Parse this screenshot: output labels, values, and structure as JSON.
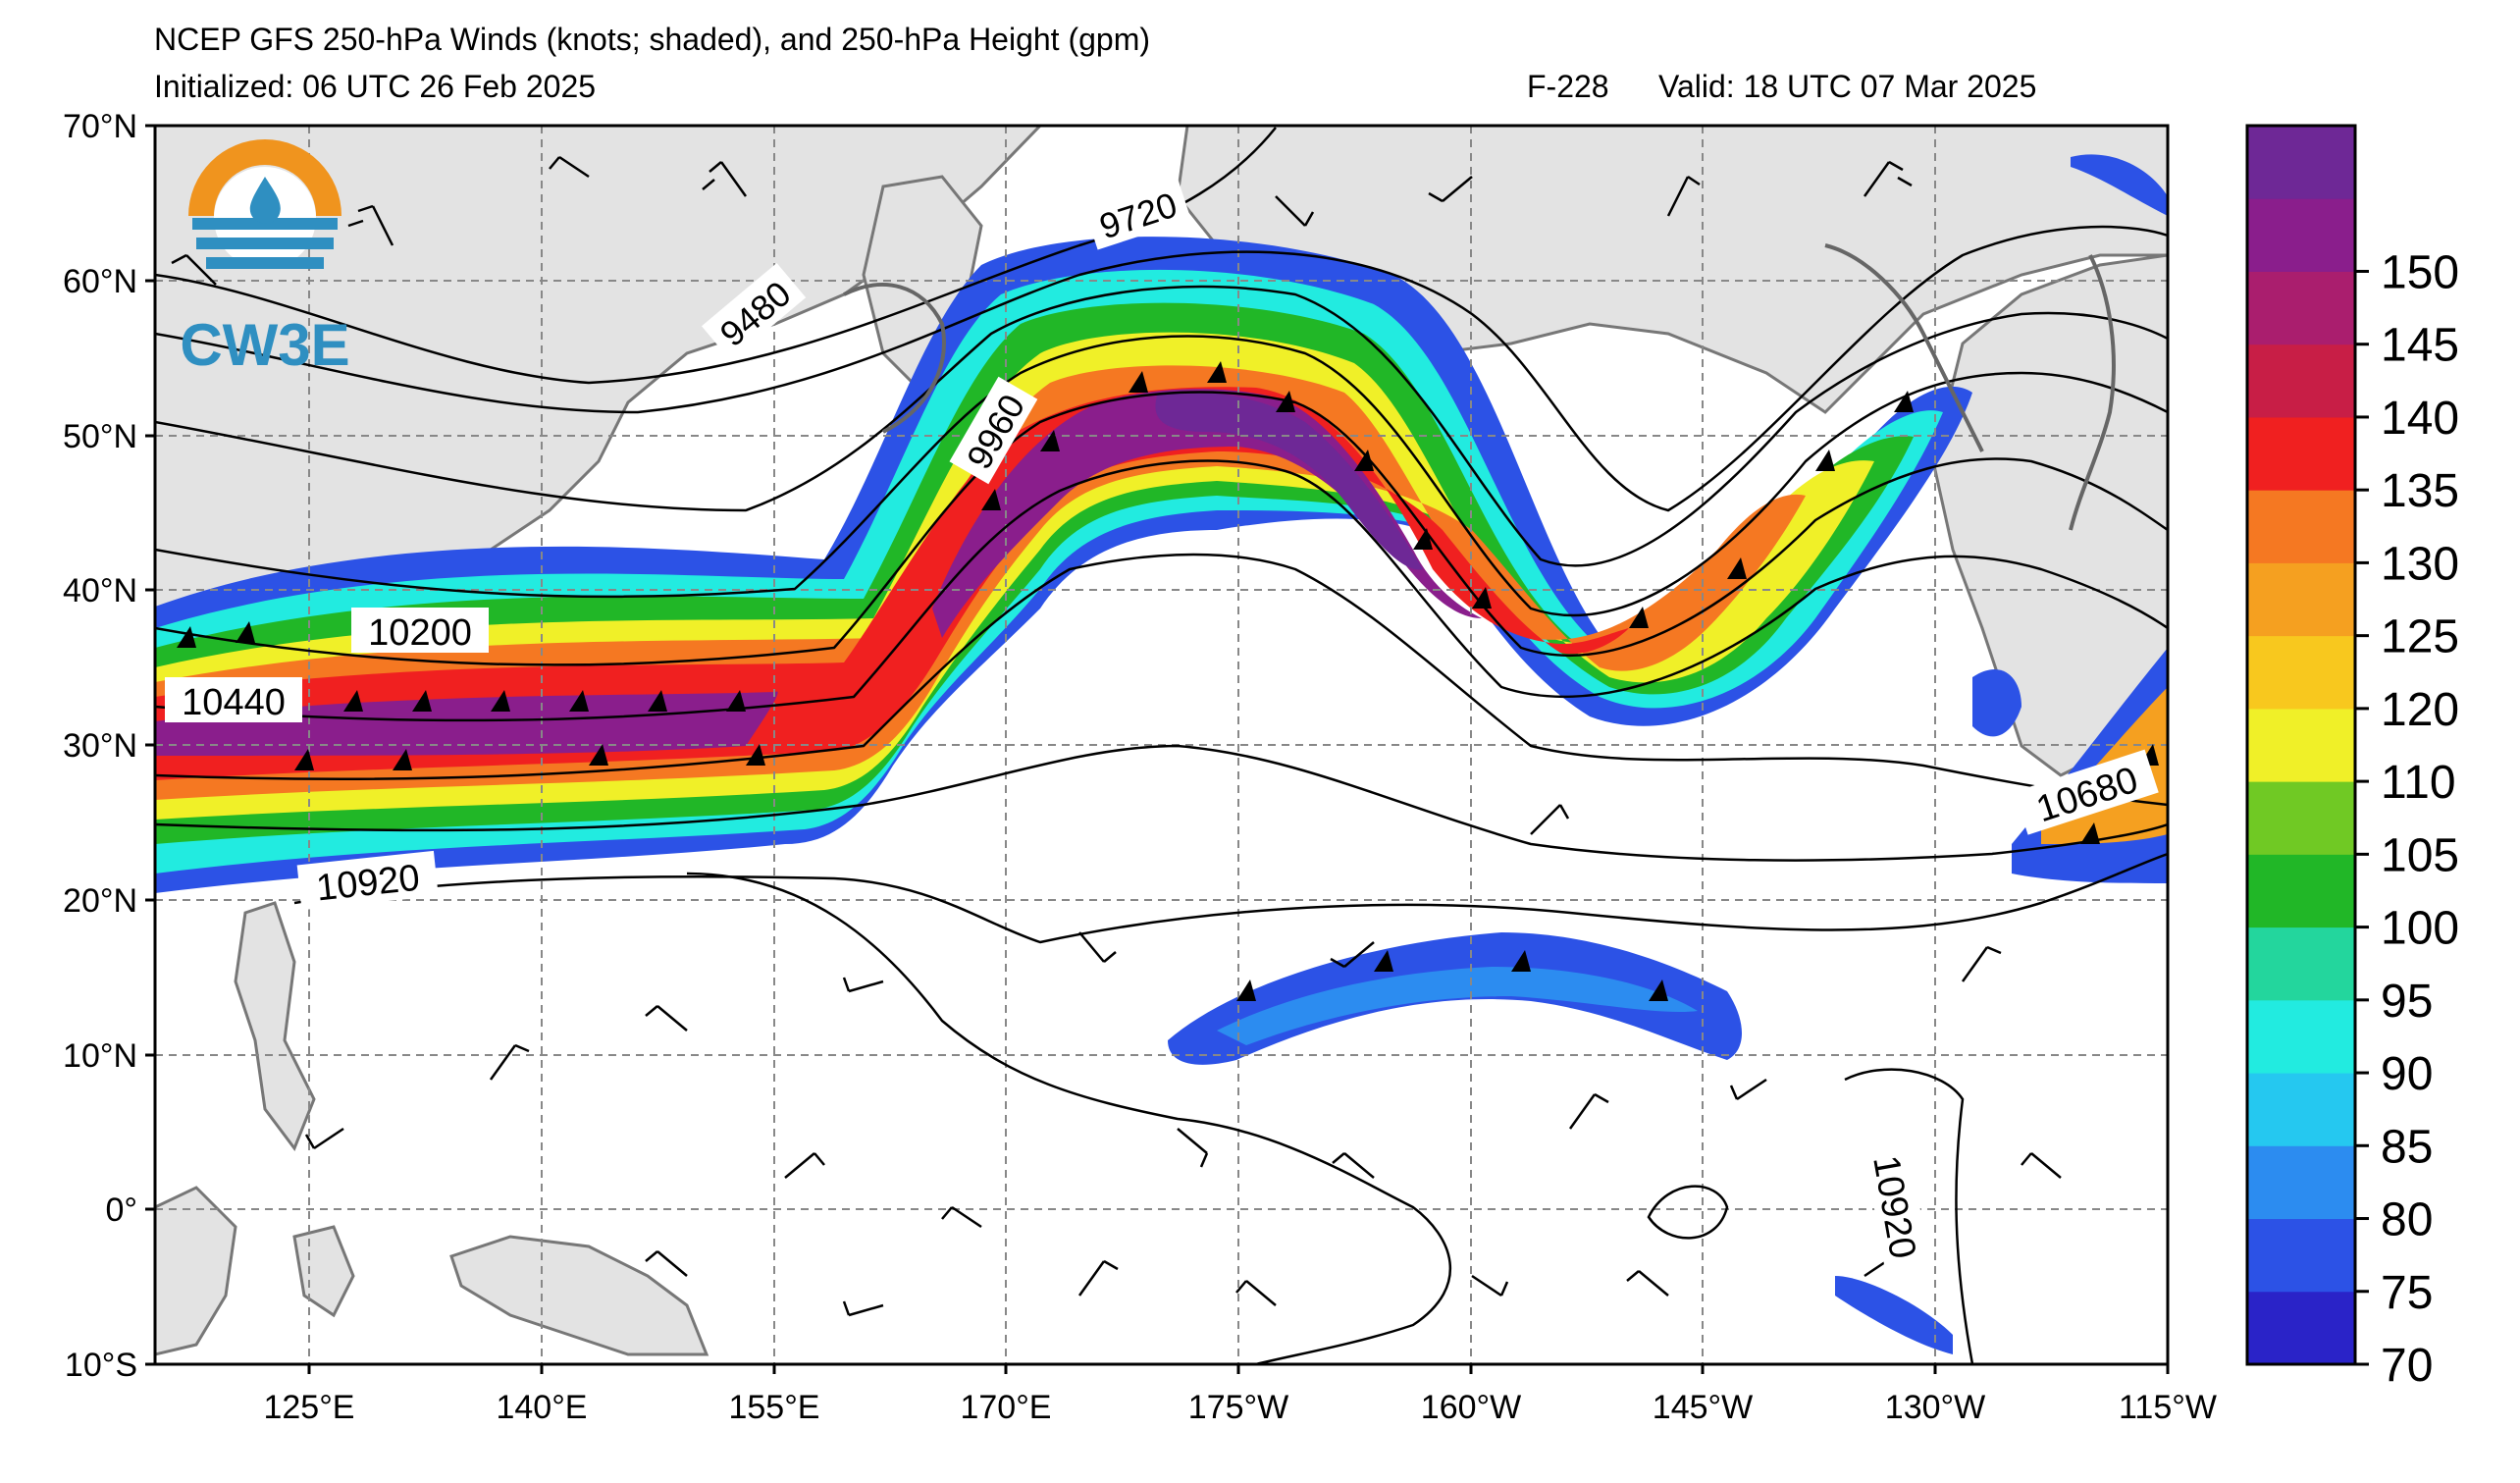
{
  "header": {
    "title": "NCEP GFS 250-hPa Winds (knots; shaded), and 250-hPa Height (gpm)",
    "initialized": "Initialized: 06 UTC 26 Feb 2025",
    "forecast": "F-228",
    "valid": "Valid: 18 UTC 07 Mar 2025"
  },
  "logo": {
    "text": "CW3E",
    "accent_color": "#f0941e",
    "main_color": "#2f8fc1"
  },
  "axes": {
    "lon_labels": [
      "125°E",
      "140°E",
      "155°E",
      "170°E",
      "175°W",
      "160°W",
      "145°W",
      "130°W",
      "115°W"
    ],
    "lat_labels": [
      "70°N",
      "60°N",
      "50°N",
      "40°N",
      "30°N",
      "20°N",
      "10°N",
      "0°",
      "10°S"
    ]
  },
  "contour_labels": [
    "9480",
    "9720",
    "9960",
    "10200",
    "10440",
    "10920",
    "10680",
    "10920"
  ],
  "colorbar": {
    "ticks": [
      "70",
      "75",
      "80",
      "85",
      "90",
      "95",
      "100",
      "105",
      "110",
      "120",
      "125",
      "130",
      "135",
      "140",
      "145",
      "150"
    ],
    "colors": [
      "#2a23c8",
      "#2c52e6",
      "#2c8cf0",
      "#25c8f0",
      "#22ebe0",
      "#23d69d",
      "#21b727",
      "#70c924",
      "#f0f028",
      "#f8c81e",
      "#f5a020",
      "#f57822",
      "#f02020",
      "#c81e46",
      "#aa1e6e",
      "#8a1e8c",
      "#6e2896"
    ]
  },
  "chart_data": {
    "type": "map",
    "variable": "250-hPa wind speed (knots) and geopotential height (gpm)",
    "wind_speed_range_kt": [
      70,
      155
    ],
    "height_contours_gpm": [
      9480,
      9720,
      9960,
      10200,
      10440,
      10680,
      10920
    ],
    "lon_range": [
      "110°E",
      "115°W"
    ],
    "lat_range": [
      "10°S",
      "70°N"
    ],
    "jet_core_max_kt": 150
  }
}
